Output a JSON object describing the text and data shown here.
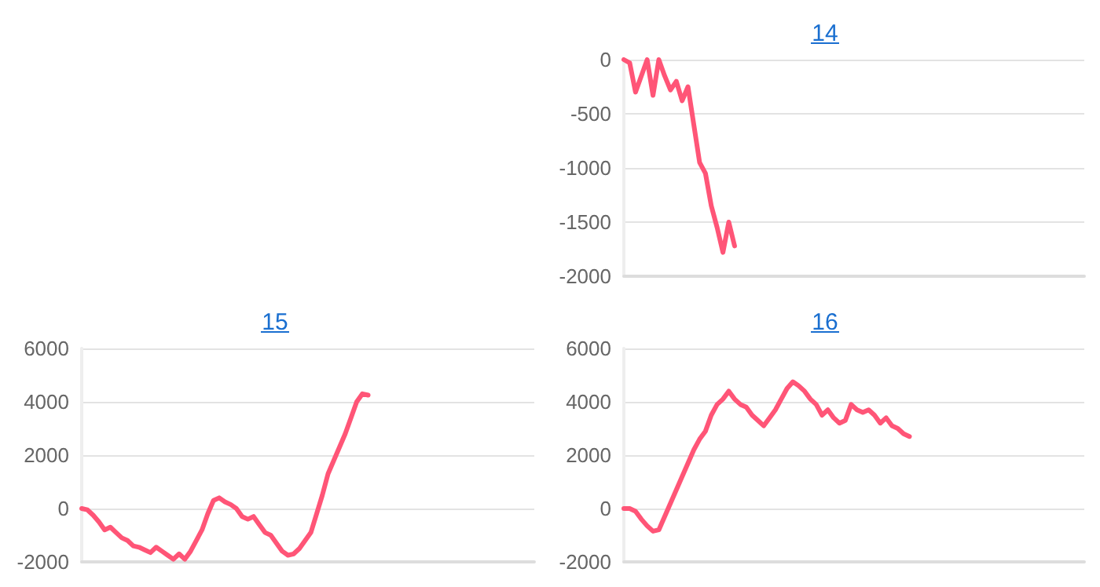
{
  "chart_data": [
    {
      "type": "line",
      "title": "14",
      "categories": [
        null,
        null,
        null,
        null,
        null,
        null,
        null,
        null,
        null,
        null,
        null,
        null,
        null,
        null,
        null,
        null,
        null,
        null,
        null,
        null,
        null,
        null,
        null,
        null,
        null,
        null,
        null,
        null,
        null,
        null,
        null,
        null,
        null,
        null,
        null,
        null,
        null,
        null,
        null,
        null,
        null,
        null,
        null,
        null,
        null,
        null,
        null,
        null,
        null,
        null,
        null,
        null,
        null,
        null,
        null,
        null,
        null,
        null,
        null,
        null,
        null,
        null,
        null,
        null,
        null,
        null,
        null,
        null,
        null,
        null,
        null,
        null,
        null,
        null,
        null,
        null,
        null,
        null,
        null,
        null
      ],
      "series": [
        {
          "color": "#ff5577",
          "values": [
            0,
            -30,
            -300,
            -150,
            0,
            -330,
            0,
            -150,
            -280,
            -200,
            -380,
            -250,
            -600,
            -950,
            -1050,
            -1350,
            -1550,
            -1780,
            -1500,
            -1720,
            null,
            null,
            null,
            null,
            null,
            null,
            null,
            null,
            null,
            null,
            null,
            null,
            null,
            null,
            null,
            null,
            null,
            null,
            null,
            null,
            null,
            null,
            null,
            null,
            null,
            null,
            null,
            null,
            null,
            null,
            null,
            null,
            null,
            null,
            null,
            null,
            null,
            null,
            null,
            null,
            null,
            null,
            null,
            null,
            null,
            null,
            null,
            null,
            null,
            null,
            null,
            null,
            null,
            null,
            null,
            null,
            null,
            null,
            null,
            null
          ]
        }
      ],
      "ylim": [
        -2000,
        0
      ],
      "yticks": [
        -2000,
        -1500,
        -1000,
        -500,
        0
      ],
      "grid": "y",
      "tick_labels": "y",
      "line_style": "solid"
    },
    {
      "type": "line",
      "title": "15",
      "categories": [
        null,
        null,
        null,
        null,
        null,
        null,
        null,
        null,
        null,
        null,
        null,
        null,
        null,
        null,
        null,
        null,
        null,
        null,
        null,
        null,
        null,
        null,
        null,
        null,
        null,
        null,
        null,
        null,
        null,
        null,
        null,
        null,
        null,
        null,
        null,
        null,
        null,
        null,
        null,
        null,
        null,
        null,
        null,
        null,
        null,
        null,
        null,
        null,
        null,
        null,
        null,
        null,
        null,
        null,
        null,
        null,
        null,
        null,
        null,
        null,
        null,
        null,
        null,
        null,
        null,
        null,
        null,
        null,
        null,
        null,
        null,
        null,
        null,
        null,
        null,
        null,
        null,
        null,
        null,
        null
      ],
      "series": [
        {
          "color": "#ff5577",
          "values": [
            0,
            -50,
            -250,
            -500,
            -800,
            -700,
            -900,
            -1100,
            -1200,
            -1400,
            -1450,
            -1550,
            -1650,
            -1450,
            -1600,
            -1750,
            -1900,
            -1700,
            -1900,
            -1600,
            -1200,
            -800,
            -200,
            300,
            400,
            250,
            150,
            0,
            -300,
            -400,
            -300,
            -600,
            -900,
            -1000,
            -1300,
            -1600,
            -1750,
            -1700,
            -1500,
            -1200,
            -900,
            -200,
            500,
            1300,
            1800,
            2300,
            2800,
            3400,
            4000,
            4300,
            4250,
            null,
            null,
            null,
            null,
            null,
            null,
            null,
            null,
            null,
            null,
            null,
            null,
            null,
            null,
            null,
            null,
            null,
            null,
            null,
            null,
            null,
            null,
            null,
            null,
            null,
            null,
            null,
            null,
            null
          ]
        }
      ],
      "ylim": [
        -2000,
        6000
      ],
      "yticks": [
        -2000,
        0,
        2000,
        4000,
        6000
      ],
      "grid": "y",
      "tick_labels": "y",
      "line_style": "solid"
    },
    {
      "type": "line",
      "title": "16",
      "categories": [
        null,
        null,
        null,
        null,
        null,
        null,
        null,
        null,
        null,
        null,
        null,
        null,
        null,
        null,
        null,
        null,
        null,
        null,
        null,
        null,
        null,
        null,
        null,
        null,
        null,
        null,
        null,
        null,
        null,
        null,
        null,
        null,
        null,
        null,
        null,
        null,
        null,
        null,
        null,
        null,
        null,
        null,
        null,
        null,
        null,
        null,
        null,
        null,
        null,
        null,
        null,
        null,
        null,
        null,
        null,
        null,
        null,
        null,
        null,
        null,
        null,
        null,
        null,
        null,
        null,
        null,
        null,
        null,
        null,
        null,
        null,
        null,
        null,
        null,
        null,
        null,
        null,
        null,
        null,
        null
      ],
      "series": [
        {
          "color": "#ff5577",
          "values": [
            0,
            0,
            -100,
            -400,
            -650,
            -850,
            -800,
            -300,
            200,
            700,
            1200,
            1700,
            2200,
            2600,
            2900,
            3500,
            3900,
            4100,
            4400,
            4100,
            3900,
            3800,
            3500,
            3300,
            3100,
            3400,
            3700,
            4100,
            4500,
            4750,
            4600,
            4400,
            4100,
            3900,
            3500,
            3700,
            3400,
            3200,
            3300,
            3900,
            3700,
            3600,
            3700,
            3500,
            3200,
            3400,
            3100,
            3000,
            2800,
            2700,
            null,
            null,
            null,
            null,
            null,
            null,
            null,
            null,
            null,
            null,
            null,
            null,
            null,
            null,
            null,
            null,
            null,
            null,
            null,
            null,
            null,
            null,
            null,
            null,
            null,
            null,
            null,
            null,
            null,
            null
          ]
        }
      ],
      "ylim": [
        -2000,
        6000
      ],
      "yticks": [
        -2000,
        0,
        2000,
        4000,
        6000
      ],
      "grid": "y",
      "tick_labels": "y",
      "line_style": "solid"
    }
  ]
}
